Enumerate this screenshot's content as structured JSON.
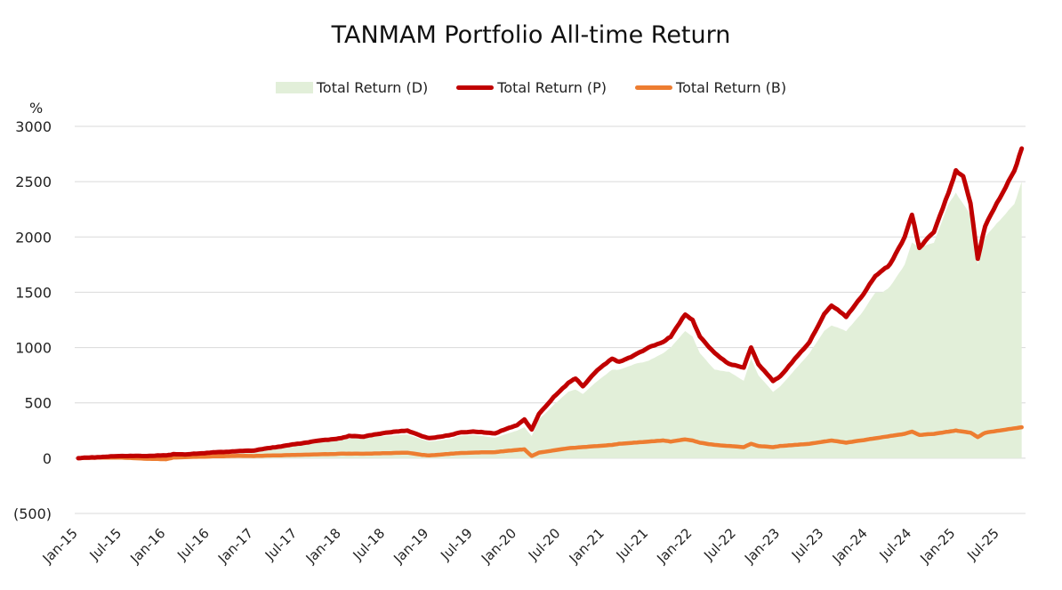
{
  "chart_data": {
    "type": "line",
    "title": "TANMAM Portfolio All-time Return",
    "ylabel": "%",
    "xlabel": "",
    "ylim": [
      -500,
      3000
    ],
    "y_ticks": [
      3000,
      2500,
      2000,
      1500,
      1000,
      500,
      0,
      -500
    ],
    "y_tick_labels": [
      "3000",
      "2500",
      "2000",
      "1500",
      "1000",
      "500",
      "0",
      "(500)"
    ],
    "negative_tick_color": "#e00000",
    "x_tick_labels": [
      "Jan-15",
      "Jul-15",
      "Jan-16",
      "Jul-16",
      "Jan-17",
      "Jul-17",
      "Jan-18",
      "Jul-18",
      "Jan-19",
      "Jul-19",
      "Jan-20",
      "Jul-20",
      "Jan-21",
      "Jul-21",
      "Jan-22",
      "Jul-22",
      "Jan-23",
      "Jul-23",
      "Jan-24",
      "Jul-24",
      "Jan-25",
      "Jul-25"
    ],
    "grid": true,
    "legend_position": "top",
    "x": [
      "2015-01",
      "2015-04",
      "2015-07",
      "2015-10",
      "2016-01",
      "2016-02",
      "2016-04",
      "2016-07",
      "2016-10",
      "2017-01",
      "2017-04",
      "2017-07",
      "2017-10",
      "2018-01",
      "2018-02",
      "2018-04",
      "2018-07",
      "2018-10",
      "2018-12",
      "2019-01",
      "2019-04",
      "2019-05",
      "2019-07",
      "2019-10",
      "2020-01",
      "2020-02",
      "2020-03",
      "2020-04",
      "2020-06",
      "2020-08",
      "2020-09",
      "2020-10",
      "2020-12",
      "2021-02",
      "2021-03",
      "2021-05",
      "2021-07",
      "2021-09",
      "2021-10",
      "2021-12",
      "2022-01",
      "2022-02",
      "2022-04",
      "2022-06",
      "2022-08",
      "2022-09",
      "2022-10",
      "2022-12",
      "2023-01",
      "2023-03",
      "2023-05",
      "2023-07",
      "2023-08",
      "2023-10",
      "2023-12",
      "2024-02",
      "2024-03",
      "2024-04",
      "2024-06",
      "2024-07",
      "2024-08",
      "2024-10",
      "2024-12",
      "2025-01",
      "2025-02",
      "2025-03",
      "2025-04",
      "2025-05",
      "2025-07",
      "2025-09",
      "2025-10"
    ],
    "series": [
      {
        "name": "Total Return (D)",
        "type": "area",
        "color": "#e2efd9",
        "values": [
          0,
          5,
          10,
          12,
          15,
          20,
          25,
          40,
          55,
          60,
          85,
          110,
          140,
          160,
          175,
          185,
          200,
          215,
          170,
          150,
          175,
          200,
          210,
          185,
          250,
          280,
          200,
          350,
          480,
          600,
          620,
          580,
          700,
          800,
          800,
          850,
          880,
          950,
          1000,
          1150,
          1100,
          950,
          800,
          780,
          700,
          900,
          750,
          600,
          650,
          800,
          950,
          1150,
          1200,
          1150,
          1300,
          1500,
          1500,
          1550,
          1750,
          1950,
          1900,
          1950,
          2300,
          2400,
          2300,
          2200,
          1750,
          2000,
          2150,
          2300,
          2500
        ]
      },
      {
        "name": "Total Return (P)",
        "type": "line",
        "color": "#c00000",
        "values": [
          0,
          10,
          20,
          20,
          25,
          35,
          35,
          50,
          60,
          70,
          100,
          130,
          160,
          180,
          200,
          195,
          230,
          250,
          200,
          180,
          210,
          230,
          240,
          225,
          300,
          350,
          260,
          400,
          550,
          680,
          720,
          650,
          800,
          900,
          870,
          930,
          1000,
          1050,
          1100,
          1300,
          1250,
          1100,
          950,
          850,
          820,
          1000,
          850,
          700,
          740,
          900,
          1050,
          1300,
          1380,
          1280,
          1450,
          1650,
          1700,
          1750,
          2000,
          2200,
          1900,
          2050,
          2400,
          2600,
          2550,
          2300,
          1800,
          2100,
          2350,
          2600,
          2800
        ]
      },
      {
        "name": "Total Return (B)",
        "type": "line",
        "color": "#ed7d31",
        "values": [
          0,
          5,
          5,
          -5,
          -10,
          5,
          10,
          15,
          20,
          20,
          25,
          30,
          35,
          40,
          40,
          40,
          45,
          50,
          30,
          25,
          40,
          45,
          50,
          55,
          75,
          80,
          20,
          50,
          70,
          90,
          95,
          100,
          110,
          120,
          130,
          140,
          150,
          160,
          150,
          170,
          160,
          140,
          120,
          110,
          100,
          130,
          110,
          100,
          110,
          120,
          130,
          150,
          160,
          140,
          160,
          180,
          190,
          200,
          220,
          240,
          210,
          220,
          240,
          250,
          240,
          230,
          190,
          230,
          250,
          270,
          280
        ]
      }
    ]
  }
}
